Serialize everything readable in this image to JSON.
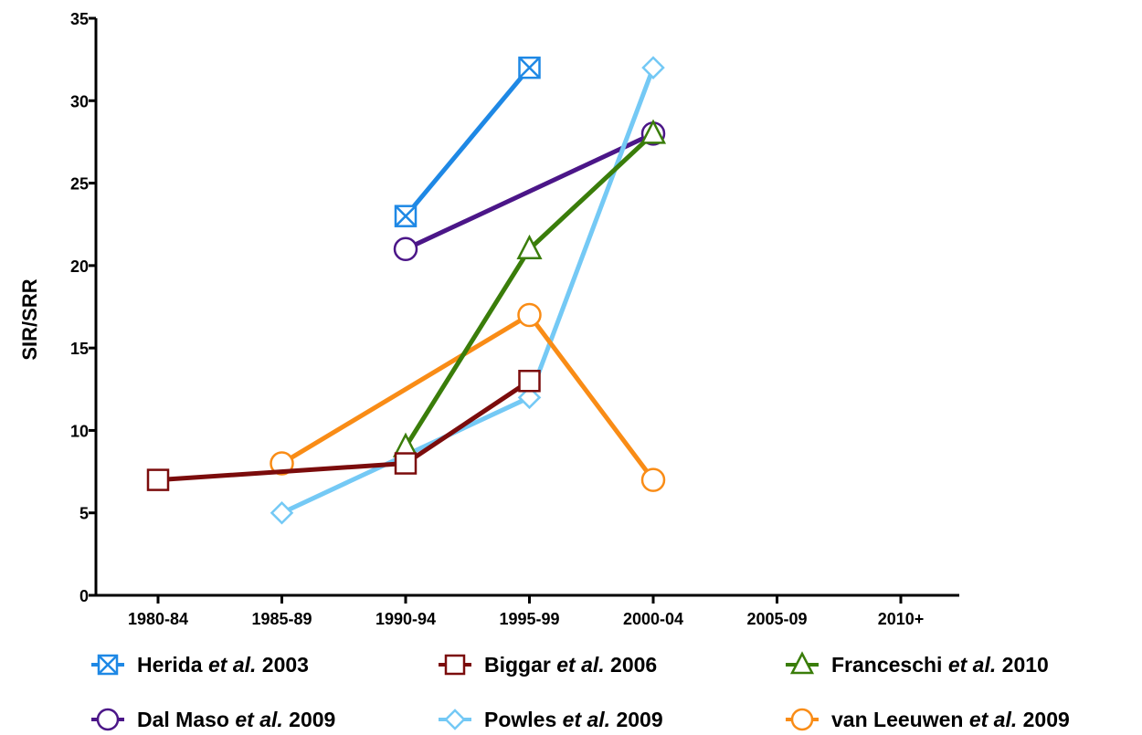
{
  "chart_data": {
    "type": "line",
    "ylabel": "SIR/SRR",
    "xlabel": "",
    "categories": [
      "1980-84",
      "1985-89",
      "1990-94",
      "1995-99",
      "2000-04",
      "2005-09",
      "2010+"
    ],
    "ylim": [
      0,
      35
    ],
    "yticks": [
      0,
      5,
      10,
      15,
      20,
      25,
      30,
      35
    ],
    "grid": false,
    "legend_position": "bottom",
    "series": [
      {
        "name": "Herida et al. 2003",
        "name_parts": [
          "Herida ",
          "et al.",
          " 2003"
        ],
        "color": "#1e88e5",
        "marker": "square-x",
        "points": [
          [
            "1990-94",
            23
          ],
          [
            "1995-99",
            32
          ]
        ]
      },
      {
        "name": "Biggar et al. 2006",
        "name_parts": [
          "Biggar ",
          "et al.",
          " 2006"
        ],
        "color": "#7b0c0c",
        "marker": "square",
        "points": [
          [
            "1980-84",
            7
          ],
          [
            "1990-94",
            8
          ],
          [
            "1995-99",
            13
          ]
        ]
      },
      {
        "name": "Franceschi et al. 2010",
        "name_parts": [
          "Franceschi ",
          "et al.",
          " 2010"
        ],
        "color": "#3a7d0a",
        "marker": "triangle",
        "points": [
          [
            "1990-94",
            9
          ],
          [
            "1995-99",
            21
          ],
          [
            "2000-04",
            28
          ]
        ]
      },
      {
        "name": "Dal Maso et al. 2009",
        "name_parts": [
          "Dal Maso ",
          "et al.",
          " 2009"
        ],
        "color": "#4b1688",
        "marker": "circle",
        "points": [
          [
            "1990-94",
            21
          ],
          [
            "2000-04",
            28
          ]
        ]
      },
      {
        "name": "Powles et al. 2009",
        "name_parts": [
          "Powles ",
          "et al.",
          " 2009"
        ],
        "color": "#74c9f5",
        "marker": "diamond",
        "points": [
          [
            "1985-89",
            5
          ],
          [
            "1995-99",
            12
          ],
          [
            "2000-04",
            32
          ]
        ]
      },
      {
        "name": "van Leeuwen et al. 2009",
        "name_parts": [
          "van Leeuwen ",
          "et al.",
          " 2009"
        ],
        "color": "#f98c16",
        "marker": "circle",
        "points": [
          [
            "1985-89",
            8
          ],
          [
            "1995-99",
            17
          ],
          [
            "2000-04",
            7
          ]
        ]
      }
    ],
    "draw_order": [
      3,
      4,
      5,
      2,
      1,
      0
    ]
  }
}
